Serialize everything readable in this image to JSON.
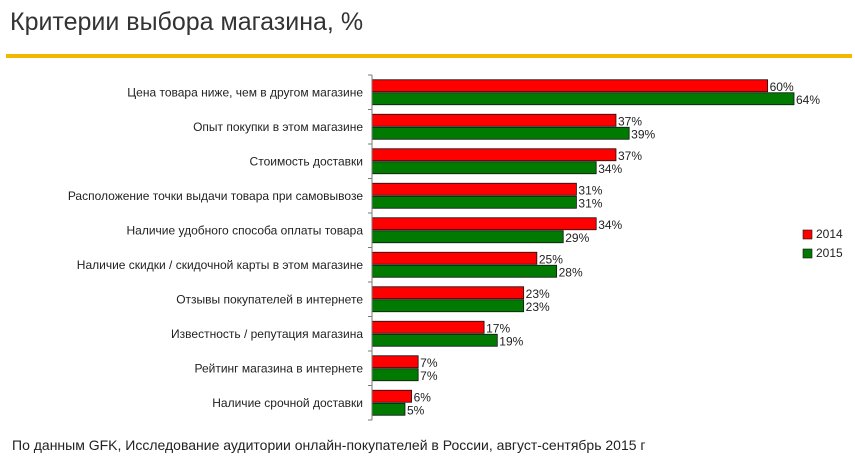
{
  "title": "Критерии выбора магазина, %",
  "footnote": "По данным GFK, Исследование аудитории онлайн-покупателей в России, август-сентябрь 2015 г",
  "colors": {
    "series_2014": "#ff0000",
    "series_2015": "#007a00",
    "accent": "#f2b800",
    "axis": "#7a7a7a"
  },
  "chart_data": {
    "type": "bar",
    "orientation": "horizontal",
    "title": "Критерии выбора магазина, %",
    "xlabel": "",
    "ylabel": "",
    "xlim": [
      0,
      64
    ],
    "value_suffix": "%",
    "legend_position": "right",
    "categories": [
      "Цена товара ниже, чем в другом магазине",
      "Опыт покупки в этом магазине",
      "Стоимость доставки",
      "Расположение точки выдачи товара при самовывозе",
      "Наличие удобного способа оплаты товара",
      "Наличие скидки / скидочной карты в этом магазине",
      "Отзывы покупателей в интернете",
      "Известность / репутация магазина",
      "Рейтинг магазина в интернете",
      "Наличие срочной доставки"
    ],
    "series": [
      {
        "name": "2014",
        "color": "#ff0000",
        "values": [
          60,
          37,
          37,
          31,
          34,
          25,
          23,
          17,
          7,
          6
        ]
      },
      {
        "name": "2015",
        "color": "#007a00",
        "values": [
          64,
          39,
          34,
          31,
          29,
          28,
          23,
          19,
          7,
          5
        ]
      }
    ]
  }
}
